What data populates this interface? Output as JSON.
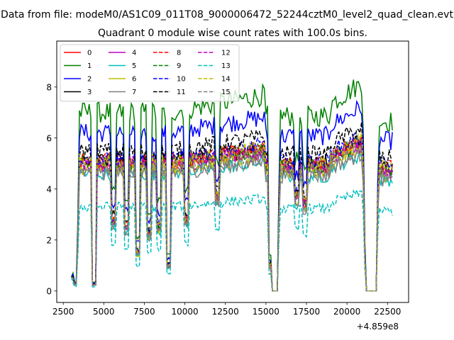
{
  "suptitle": "Data from file: modeM0/AS1C09_011T08_9000006472_52244cztM0_level2_quad_clean.evt",
  "chart_data": {
    "type": "line",
    "title": "Quadrant 0 module wise count rates with 100.0s bins.",
    "xlabel": "",
    "ylabel": "",
    "x_offset_label": "+4.859e8",
    "xlim": [
      2100,
      23800
    ],
    "ylim": [
      -0.45,
      9.8
    ],
    "xticks": [
      2500,
      5000,
      7500,
      10000,
      12500,
      15000,
      17500,
      20000,
      22500
    ],
    "xtick_labels": [
      "2500",
      "5000",
      "7500",
      "10000",
      "12500",
      "15000",
      "17500",
      "20000",
      "22500"
    ],
    "yticks": [
      0,
      2,
      4,
      6,
      8
    ],
    "ytick_labels": [
      "0",
      "2",
      "4",
      "6",
      "8"
    ],
    "x_start": 3000,
    "x_end": 22800,
    "x_step": 100,
    "legend_location": "top-left",
    "legend_columns": 4,
    "series": [
      {
        "name": "0",
        "color": "#ff0000",
        "dash": "solid",
        "base": 5.0
      },
      {
        "name": "1",
        "color": "#008000",
        "dash": "solid",
        "base": 7.0
      },
      {
        "name": "2",
        "color": "#0000ff",
        "dash": "solid",
        "base": 6.2
      },
      {
        "name": "3",
        "color": "#000000",
        "dash": "solid",
        "base": 5.1
      },
      {
        "name": "4",
        "color": "#bf00bf",
        "dash": "solid",
        "base": 4.9
      },
      {
        "name": "5",
        "color": "#00bfbf",
        "dash": "solid",
        "base": 4.6
      },
      {
        "name": "6",
        "color": "#bfbf00",
        "dash": "solid",
        "base": 4.8
      },
      {
        "name": "7",
        "color": "#808080",
        "dash": "solid",
        "base": 4.6
      },
      {
        "name": "8",
        "color": "#ff0000",
        "dash": "dashed",
        "base": 5.1
      },
      {
        "name": "9",
        "color": "#008000",
        "dash": "dashed",
        "base": 5.0
      },
      {
        "name": "10",
        "color": "#0000ff",
        "dash": "dashed",
        "base": 5.2
      },
      {
        "name": "11",
        "color": "#000000",
        "dash": "dashed",
        "base": 5.5
      },
      {
        "name": "12",
        "color": "#bf00bf",
        "dash": "dashed",
        "base": 5.0
      },
      {
        "name": "13",
        "color": "#00bfbf",
        "dash": "dashed",
        "base": 3.3
      },
      {
        "name": "14",
        "color": "#bfbf00",
        "dash": "dashed",
        "base": 5.1
      },
      {
        "name": "15",
        "color": "#808080",
        "dash": "dashed",
        "base": 4.8
      }
    ]
  }
}
